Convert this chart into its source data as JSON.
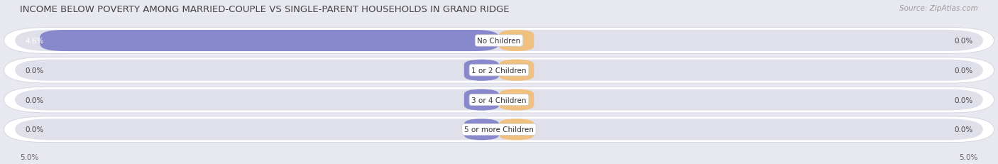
{
  "title": "INCOME BELOW POVERTY AMONG MARRIED-COUPLE VS SINGLE-PARENT HOUSEHOLDS IN GRAND RIDGE",
  "source": "Source: ZipAtlas.com",
  "categories": [
    "No Children",
    "1 or 2 Children",
    "3 or 4 Children",
    "5 or more Children"
  ],
  "married_values": [
    4.6,
    0.0,
    0.0,
    0.0
  ],
  "single_values": [
    0.0,
    0.0,
    0.0,
    0.0
  ],
  "married_color": "#8888cc",
  "single_color": "#f0c080",
  "axis_max": 5.0,
  "fig_bg_color": "#e8e8f0",
  "bar_bg_color": "#e0e0ea",
  "bar_row_bg": "#f0f0f5",
  "title_fontsize": 9.5,
  "source_fontsize": 7.5,
  "label_fontsize": 7.5,
  "category_fontsize": 7.5,
  "legend_fontsize": 7.5,
  "axis_label_fontsize": 7.5
}
